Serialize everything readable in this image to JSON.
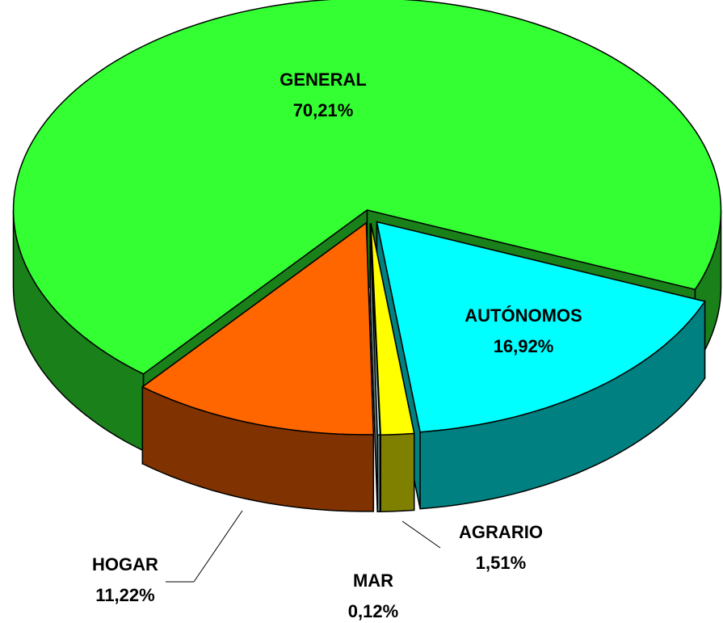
{
  "chart_data": {
    "type": "pie",
    "categories": [
      "GENERAL",
      "AUTÓNOMOS",
      "AGRARIO",
      "MAR",
      "HOGAR"
    ],
    "values": [
      70.21,
      16.92,
      1.51,
      0.12,
      11.22
    ],
    "value_labels": [
      "70,21%",
      "16,92%",
      "1,51%",
      "0,12%",
      "11,22%"
    ],
    "colors": [
      "#33ff33",
      "#00ffff",
      "#ffff00",
      "#ccffff",
      "#ff6600"
    ]
  }
}
